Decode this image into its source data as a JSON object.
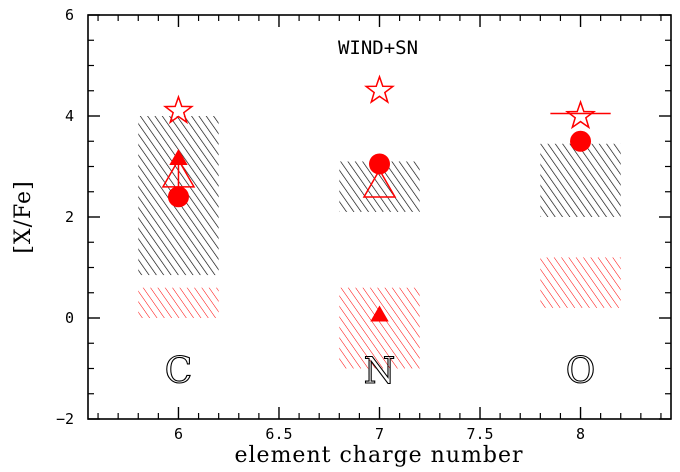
{
  "chart_data": {
    "type": "scatter",
    "title": "",
    "xlabel": "element charge number",
    "ylabel": "[X/Fe]",
    "xlim": [
      5.55,
      8.45
    ],
    "ylim": [
      -2,
      6
    ],
    "xticks": [
      6,
      6.5,
      7,
      7.5,
      8
    ],
    "xtick_labels": [
      "6",
      "6.5",
      "7",
      "7.5",
      "8"
    ],
    "yticks": [
      -2,
      0,
      2,
      4,
      6
    ],
    "ytick_labels": [
      "−2",
      "0",
      "2",
      "4",
      "6"
    ],
    "annotation": "WIND+SN",
    "element_labels": [
      {
        "text": "C",
        "x": 6,
        "y": -1.05
      },
      {
        "text": "N",
        "x": 7,
        "y": -1.05
      },
      {
        "text": "O",
        "x": 8,
        "y": -1.05
      }
    ],
    "ranges": [
      {
        "group": "black-hatched",
        "color": "#000000",
        "x_min": 5.8,
        "x_max": 6.2,
        "y_min": 0.85,
        "y_max": 4.0
      },
      {
        "group": "black-hatched",
        "color": "#000000",
        "x_min": 6.8,
        "x_max": 7.2,
        "y_min": 2.1,
        "y_max": 3.1
      },
      {
        "group": "black-hatched",
        "color": "#000000",
        "x_min": 7.8,
        "x_max": 8.2,
        "y_min": 2.0,
        "y_max": 3.45
      },
      {
        "group": "red-hatched",
        "color": "#ff0000",
        "x_min": 5.8,
        "x_max": 6.2,
        "y_min": 0.0,
        "y_max": 0.6
      },
      {
        "group": "red-hatched",
        "color": "#ff0000",
        "x_min": 6.8,
        "x_max": 7.2,
        "y_min": -1.0,
        "y_max": 0.6
      },
      {
        "group": "red-hatched",
        "color": "#ff0000",
        "x_min": 7.8,
        "x_max": 8.2,
        "y_min": 0.2,
        "y_max": 1.2
      }
    ],
    "series": [
      {
        "marker": "open-star",
        "color": "#ff0000",
        "points": [
          {
            "x": 6,
            "y": 4.1
          },
          {
            "x": 7,
            "y": 4.5
          },
          {
            "x": 8,
            "y": 4.0
          }
        ]
      },
      {
        "marker": "filled-circle",
        "color": "#ff0000",
        "points": [
          {
            "x": 6,
            "y": 2.4
          },
          {
            "x": 7,
            "y": 3.05
          },
          {
            "x": 8,
            "y": 3.5
          }
        ]
      },
      {
        "marker": "filled-triangle",
        "color": "#ff0000",
        "points": [
          {
            "x": 6,
            "y": 3.15
          },
          {
            "x": 7,
            "y": 0.05
          }
        ]
      },
      {
        "marker": "open-triangle",
        "color": "#ff0000",
        "points": [
          {
            "x": 6,
            "y": 2.8
          },
          {
            "x": 7,
            "y": 2.6
          }
        ]
      }
    ],
    "connectors": [
      {
        "color": "#ff0000",
        "x": 6,
        "y_from": 3.15,
        "y_to": 2.4
      }
    ],
    "bars": [
      {
        "color": "#ff0000",
        "x_from": 7.85,
        "x_to": 8.15,
        "y": 4.05
      }
    ]
  }
}
